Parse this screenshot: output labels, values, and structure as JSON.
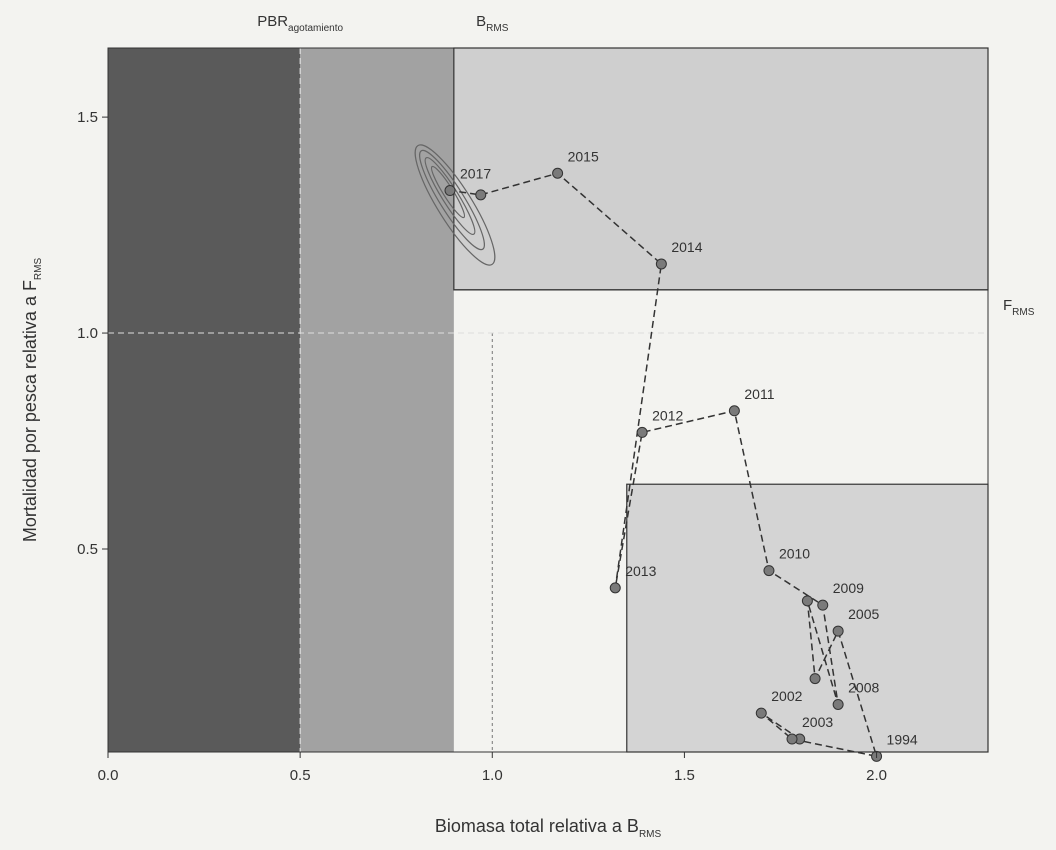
{
  "chart_data": {
    "type": "scatter",
    "x_label": "Biomasa total relativa a B",
    "x_label_sub": "RMS",
    "y_label": "Mortalidad por pesca relativa a F",
    "y_label_sub": "RMS",
    "xlim": [
      0,
      2.29
    ],
    "ylim": [
      0.03,
      1.66
    ],
    "xticks": [
      {
        "value": 0,
        "label": "0.0"
      },
      0.5,
      {
        "value": 1,
        "label": "1.0"
      },
      1.5,
      {
        "value": 2,
        "label": "2.0"
      }
    ],
    "yticks": [
      0.5,
      {
        "value": 1,
        "label": "1.0"
      },
      1.5
    ],
    "regions": [
      {
        "x": [
          0,
          0.5
        ],
        "y": [
          0.03,
          1.66
        ],
        "color": "#5a5a5a"
      },
      {
        "x": [
          0.5,
          0.9
        ],
        "y": [
          0.03,
          1.66
        ],
        "color": "#a2a2a2"
      },
      {
        "x": [
          0.9,
          2.29
        ],
        "y": [
          1.1,
          1.66
        ],
        "color": "#cfcfcf"
      },
      {
        "x": [
          1.35,
          2.29
        ],
        "y": [
          0.03,
          0.65
        ],
        "color": "#d4d4d4"
      }
    ],
    "ref_lines": [
      {
        "axis": "x",
        "value": 0.5,
        "label": "PBR",
        "label_sub": "agotamiento"
      },
      {
        "axis": "x",
        "value": 1.0,
        "label": "B",
        "label_sub": "RMS"
      },
      {
        "axis": "y",
        "value": 1.0
      },
      {
        "axis": "y",
        "value": 1.1,
        "label": "F",
        "label_sub": "RMS"
      }
    ],
    "color": "#7a7a7a",
    "x": [
      1.8,
      1.7,
      1.78,
      2.0,
      1.9,
      1.84,
      1.82,
      1.9,
      1.86,
      1.72,
      1.63,
      1.39,
      1.32,
      1.44,
      1.17,
      0.97,
      0.89
    ],
    "y": [
      0.06,
      0.12,
      0.06,
      0.02,
      0.31,
      0.2,
      0.38,
      0.14,
      0.37,
      0.45,
      0.82,
      0.77,
      0.41,
      1.16,
      1.37,
      1.32,
      1.33
    ],
    "point_labels": [
      null,
      "2002",
      "2003",
      "1994",
      "2005",
      null,
      null,
      "2008",
      "2009",
      "2010",
      "2011",
      "2012",
      "2013",
      "2014",
      "2015",
      null,
      "2017"
    ]
  }
}
